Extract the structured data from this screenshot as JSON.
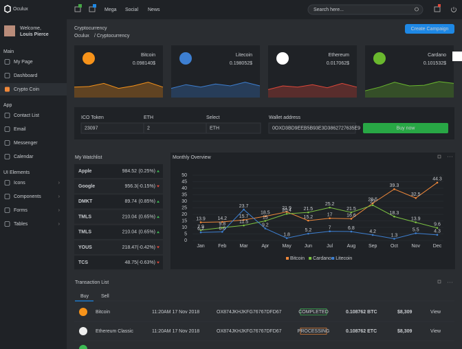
{
  "sidebar": {
    "brand": "Oculux",
    "welcome": "Welcome,",
    "user": "Louis Pierce",
    "sections": [
      {
        "title": "Main",
        "items": [
          "My Page",
          "Dashboard",
          "Crypto Coin"
        ]
      },
      {
        "title": "App",
        "items": [
          "Contact List",
          "Email",
          "Messenger",
          "Calendar"
        ]
      },
      {
        "title": "UI Elements",
        "items": [
          "Icons",
          "Components",
          "Forms",
          "Tables"
        ]
      }
    ]
  },
  "topbar": {
    "nav": [
      "Mega",
      "Social",
      "News"
    ],
    "search": "Search here..."
  },
  "header": {
    "title": "Cryptocurrency",
    "breadcrumb": [
      "Oculux",
      "/ Cryptocurrency"
    ],
    "button": "Create Campaign"
  },
  "cards": [
    {
      "name": "Bitcoin",
      "value": "0.098140$",
      "color": "#f7931a"
    },
    {
      "name": "Litecoin",
      "value": "0.198052$",
      "color": "#3d7fd1"
    },
    {
      "name": "Ethereum",
      "value": "0.017062$",
      "color": "#e0483a"
    },
    {
      "name": "Cardano",
      "value": "0.101532$",
      "color": "#6ab82e"
    }
  ],
  "form": {
    "fields": [
      {
        "label": "ICO Token",
        "value": "23097"
      },
      {
        "label": "ETH",
        "value": "2"
      },
      {
        "label": "Select",
        "value": "ETH"
      },
      {
        "label": "Wallet address",
        "value": "0OXD3BD9EEB5B93E3D3862727635E9"
      }
    ],
    "button": "Buy now"
  },
  "watchlist": {
    "title": "My Watchlist",
    "rows": [
      {
        "name": "Apple",
        "price": "984.52",
        "change": "(0.25%)"
      },
      {
        "name": "Google",
        "price": "956.3",
        "change": "(-0.15%)"
      },
      {
        "name": "DMKT",
        "price": "89.74",
        "change": "(0.85%)"
      },
      {
        "name": "TMLS",
        "price": "210.04",
        "change": "(0.65%)"
      },
      {
        "name": "TMLS",
        "price": "210.04",
        "change": "(0.65%)"
      },
      {
        "name": "YOUS",
        "price": "218.47",
        "change": "(-0.42%)"
      },
      {
        "name": "TCS",
        "price": "48.75",
        "change": "(-0.63%)"
      }
    ]
  },
  "chart_data": {
    "type": "line",
    "title": "Monthly Overview",
    "categories": [
      "Jan",
      "Feb",
      "Mar",
      "Apr",
      "May",
      "Jun",
      "Jul",
      "Aug",
      "Sep",
      "Oct",
      "Nov",
      "Dec"
    ],
    "series": [
      {
        "name": "Bitcoin",
        "color": "#f0883a",
        "values": [
          13.9,
          14.2,
          15.7,
          18.5,
          21.9,
          15.2,
          17,
          16.6,
          28.5,
          39.3,
          32.5,
          44.3
        ]
      },
      {
        "name": "Cardano",
        "color": "#7cc242",
        "values": [
          7.9,
          9.8,
          11.5,
          15,
          20.4,
          21.5,
          25.2,
          21.5,
          27,
          18.3,
          13.9,
          9.6
        ]
      },
      {
        "name": "Litecoin",
        "color": "#3d7fd1",
        "values": [
          6.2,
          6.6,
          23.7,
          9.2,
          1.8,
          5.2,
          7,
          6.8,
          4.2,
          1.3,
          5.5,
          4.3
        ]
      }
    ],
    "ylim": [
      0,
      50
    ],
    "yticks": [
      0,
      5,
      10,
      15,
      20,
      25,
      30,
      35,
      40,
      45,
      50
    ],
    "grid": true,
    "legend": "bottom"
  },
  "transactions": {
    "title": "Transaction List",
    "tabs": [
      "Buy",
      "Sell"
    ],
    "rows": [
      {
        "coin": "Bitcoin",
        "date": "11:20AM 17 Nov 2018",
        "tx": "OX874JKHJKFG76767DFD67",
        "status": "COMPLETED",
        "amount": "0.108762 BTC",
        "price": "$8,309",
        "action": "View"
      },
      {
        "coin": "Ethereum Classic",
        "date": "11:20AM 17 Nov 2018",
        "tx": "OX874JKHJKFG76767DFD67",
        "status": "PROCESSING",
        "amount": "0.108762 ETC",
        "price": "$8,309",
        "action": "View"
      }
    ]
  }
}
